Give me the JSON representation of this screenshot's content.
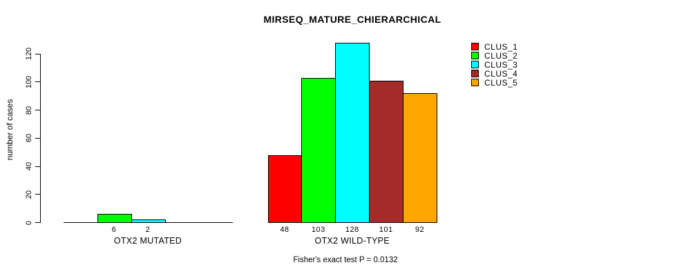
{
  "chart_data": {
    "type": "bar",
    "title": "MIRSEQ_MATURE_CHIERARCHICAL",
    "ylabel": "number of cases",
    "ylim": [
      0,
      120
    ],
    "yticks": [
      0,
      20,
      40,
      60,
      80,
      100,
      120
    ],
    "grid": false,
    "legend_position": "top-right",
    "series": [
      {
        "name": "CLUS_1",
        "color": "#FF0000"
      },
      {
        "name": "CLUS_2",
        "color": "#00FF00"
      },
      {
        "name": "CLUS_3",
        "color": "#00FFFF"
      },
      {
        "name": "CLUS_4",
        "color": "#A52A2A"
      },
      {
        "name": "CLUS_5",
        "color": "#FFA500"
      }
    ],
    "groups": [
      {
        "label": "OTX2 MUTATED",
        "values": [
          0,
          6,
          2,
          0,
          0
        ],
        "bar_labels": [
          "",
          "6",
          "2",
          "",
          ""
        ]
      },
      {
        "label": "OTX2 WILD-TYPE",
        "values": [
          48,
          103,
          128,
          101,
          92
        ],
        "bar_labels": [
          "48",
          "103",
          "128",
          "101",
          "92"
        ]
      }
    ],
    "annotation": "Fisher's exact test P = 0.0132"
  },
  "colors": {
    "background": "#FFFFFF",
    "axis": "#000000",
    "text": "#000000"
  }
}
